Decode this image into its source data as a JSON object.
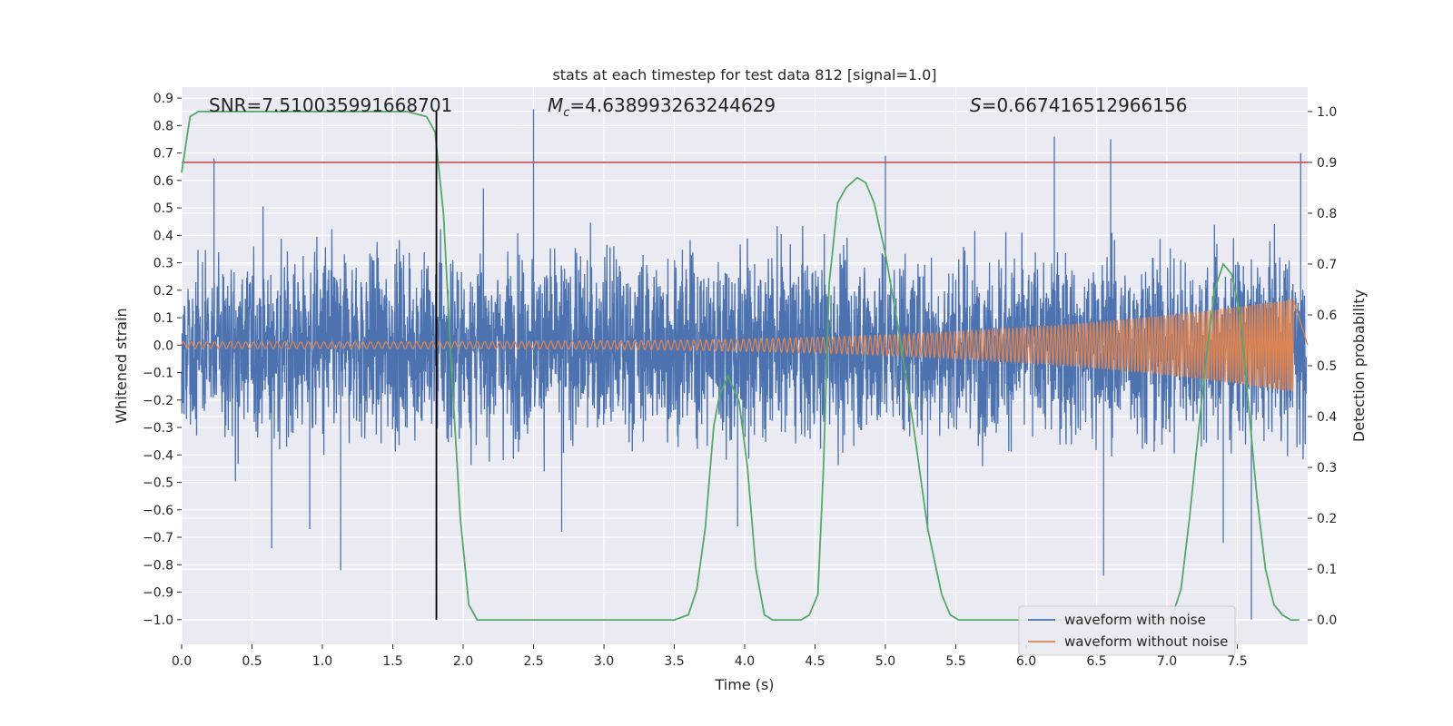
{
  "chart_data": {
    "type": "line",
    "title": "stats at each timestep for test data 812 [signal=1.0]",
    "xlabel": "Time (s)",
    "ylabel": "Whitened strain",
    "y2label": "Detection probability",
    "xlim": [
      0.0,
      8.0
    ],
    "ylim": [
      -1.09,
      0.94
    ],
    "y2lim": [
      -0.048,
      1.048
    ],
    "xticks": [
      "0.0",
      "0.5",
      "1.0",
      "1.5",
      "2.0",
      "2.5",
      "3.0",
      "3.5",
      "4.0",
      "4.5",
      "5.0",
      "5.5",
      "6.0",
      "6.5",
      "7.0",
      "7.5"
    ],
    "yticks": [
      "0.9",
      "0.8",
      "0.7",
      "0.6",
      "0.5",
      "0.4",
      "0.3",
      "0.2",
      "0.1",
      "0.0",
      "−0.1",
      "−0.2",
      "−0.3",
      "−0.4",
      "−0.5",
      "−0.6",
      "−0.7",
      "−0.8",
      "−0.9",
      "−1.0"
    ],
    "y2ticks": [
      "1.0",
      "0.9",
      "0.8",
      "0.7",
      "0.6",
      "0.5",
      "0.4",
      "0.3",
      "0.2",
      "0.1",
      "0.0"
    ],
    "grid": true,
    "legend_position": "lower-right",
    "annotations": {
      "snr": "SNR=7.510035991668701",
      "mc": "=4.638993263244629",
      "mc_symbol": "M",
      "mc_sub": "c",
      "s": "=0.667416512966156",
      "s_symbol": "S"
    },
    "threshold_y2": 0.9,
    "vertical_line_x": 1.81,
    "series": [
      {
        "name": "waveform with noise",
        "color": "#4c72b0",
        "kind": "noise",
        "duration": 7.99,
        "envelope_typical": 0.5,
        "spikes": [
          {
            "x": 0.23,
            "y": 0.68
          },
          {
            "x": 2.5,
            "y": 0.86
          },
          {
            "x": 5.0,
            "y": 0.69
          },
          {
            "x": 6.2,
            "y": 0.76
          },
          {
            "x": 6.6,
            "y": 0.75
          },
          {
            "x": 7.95,
            "y": 0.7
          },
          {
            "x": 0.64,
            "y": -0.74
          },
          {
            "x": 0.91,
            "y": -0.67
          },
          {
            "x": 1.13,
            "y": -0.82
          },
          {
            "x": 2.7,
            "y": -0.68
          },
          {
            "x": 5.3,
            "y": -0.68
          },
          {
            "x": 6.55,
            "y": -0.84
          },
          {
            "x": 7.6,
            "y": -1.0
          },
          {
            "x": 7.4,
            "y": -0.72
          },
          {
            "x": 3.95,
            "y": -0.66
          }
        ]
      },
      {
        "name": "waveform without noise",
        "color": "#dd8452",
        "kind": "chirp",
        "duration": 7.9,
        "amp_start": 0.012,
        "amp_end": 0.17,
        "freq_start": 18,
        "freq_end": 60
      },
      {
        "name": "detection probability",
        "color": "#55a868",
        "axis": "y2",
        "x": [
          0.0,
          0.06,
          0.12,
          0.2,
          0.4,
          0.8,
          1.2,
          1.6,
          1.74,
          1.8,
          1.86,
          1.92,
          1.98,
          2.04,
          2.1,
          2.2,
          2.6,
          3.0,
          3.4,
          3.5,
          3.6,
          3.66,
          3.72,
          3.78,
          3.82,
          3.88,
          3.96,
          4.02,
          4.08,
          4.14,
          4.2,
          4.3,
          4.4,
          4.46,
          4.52,
          4.56,
          4.6,
          4.66,
          4.72,
          4.8,
          4.86,
          4.92,
          5.0,
          5.1,
          5.2,
          5.3,
          5.4,
          5.46,
          5.52,
          5.6,
          6.0,
          6.5,
          7.0,
          7.04,
          7.1,
          7.16,
          7.22,
          7.28,
          7.34,
          7.4,
          7.46,
          7.52,
          7.58,
          7.64,
          7.7,
          7.76,
          7.82,
          7.88,
          7.94
        ],
        "y": [
          0.88,
          0.99,
          1.0,
          1.0,
          1.0,
          1.0,
          1.0,
          1.0,
          0.99,
          0.96,
          0.8,
          0.48,
          0.2,
          0.03,
          0.0,
          0.0,
          0.0,
          0.0,
          0.0,
          0.0,
          0.01,
          0.06,
          0.18,
          0.38,
          0.44,
          0.48,
          0.43,
          0.3,
          0.1,
          0.01,
          0.0,
          0.0,
          0.0,
          0.01,
          0.05,
          0.3,
          0.66,
          0.82,
          0.85,
          0.87,
          0.86,
          0.82,
          0.72,
          0.56,
          0.38,
          0.18,
          0.05,
          0.01,
          0.0,
          0.0,
          0.0,
          0.0,
          0.0,
          0.01,
          0.06,
          0.2,
          0.36,
          0.52,
          0.65,
          0.7,
          0.68,
          0.6,
          0.42,
          0.24,
          0.1,
          0.03,
          0.01,
          0.0,
          0.0
        ]
      }
    ],
    "threshold_color": "#c44e52",
    "vline_color": "#000000"
  }
}
